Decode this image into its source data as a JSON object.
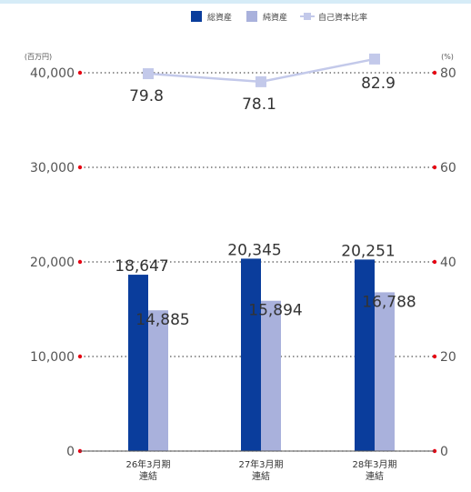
{
  "chart_data": {
    "type": "bar",
    "categories": [
      [
        "26年3月期",
        "連結"
      ],
      [
        "27年3月期",
        "連結"
      ],
      [
        "28年3月期",
        "連結"
      ]
    ],
    "series": [
      {
        "name": "総資産",
        "type": "bar",
        "axis": "left",
        "values": [
          18647,
          20345,
          20251
        ],
        "labels": [
          "18,647",
          "20,345",
          "20,251"
        ],
        "color": "#0a3d9c"
      },
      {
        "name": "純資産",
        "type": "bar",
        "axis": "left",
        "values": [
          14885,
          15894,
          16788
        ],
        "labels": [
          "14,885",
          "15,894",
          "16,788"
        ],
        "color": "#a9b1dc"
      },
      {
        "name": "自己資本比率",
        "type": "line",
        "axis": "right",
        "values": [
          79.8,
          78.1,
          82.9
        ],
        "labels": [
          "79.8",
          "78.1",
          "82.9"
        ],
        "color": "#c3c9ea"
      }
    ],
    "y_left": {
      "unit": "(百万円)",
      "min": 0,
      "max": 40000,
      "ticks": [
        0,
        10000,
        20000,
        30000,
        40000
      ],
      "tick_labels": [
        "0",
        "10,000",
        "20,000",
        "30,000",
        "40,000"
      ]
    },
    "y_right": {
      "unit": "(%)",
      "min": 0,
      "max": 80,
      "ticks": [
        0,
        20,
        40,
        60,
        80
      ],
      "tick_labels": [
        "0",
        "20",
        "40",
        "60",
        "80"
      ]
    },
    "grid": true,
    "legend": "top-right",
    "colors": {
      "axis_marker": "#e60012",
      "grid": "#555555"
    }
  }
}
